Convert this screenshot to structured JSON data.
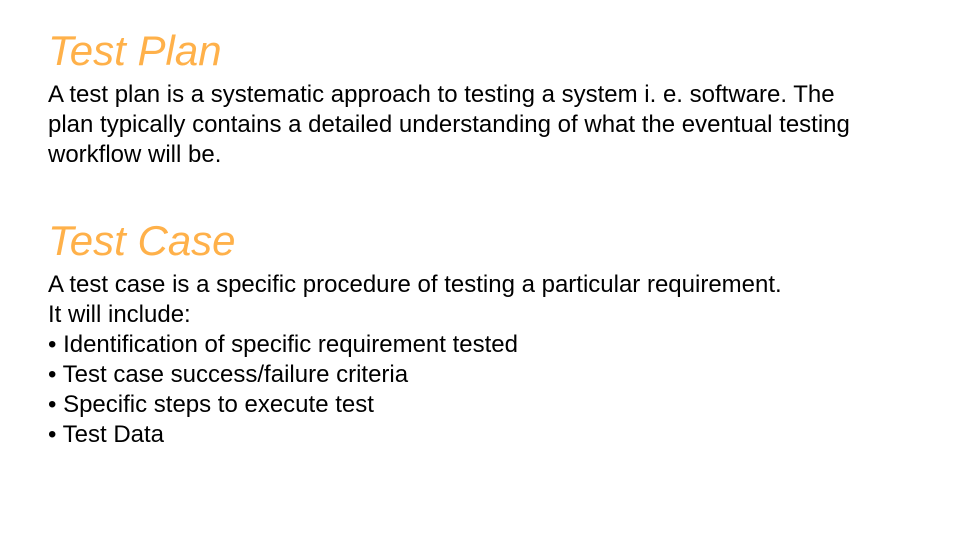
{
  "section1": {
    "heading": "Test Plan",
    "heading_color": "#ffb14a",
    "heading_fontsize": 42,
    "heading_italic": true,
    "body": "A test plan is a systematic approach to testing a system i. e. software. The plan typically contains a detailed understanding of what the eventual testing workflow will be.",
    "body_color": "#000000",
    "body_fontsize": 24
  },
  "section2": {
    "heading": "Test Case",
    "heading_color": "#ffb14a",
    "heading_fontsize": 42,
    "heading_italic": true,
    "intro1": "A test case is a specific procedure of testing a particular requirement.",
    "intro2": "It will include:",
    "bullets": [
      "• Identification of specific requirement tested",
      "• Test case success/failure criteria",
      "• Specific steps to execute test",
      "• Test Data"
    ],
    "body_color": "#000000",
    "body_fontsize": 24
  },
  "background_color": "#ffffff"
}
